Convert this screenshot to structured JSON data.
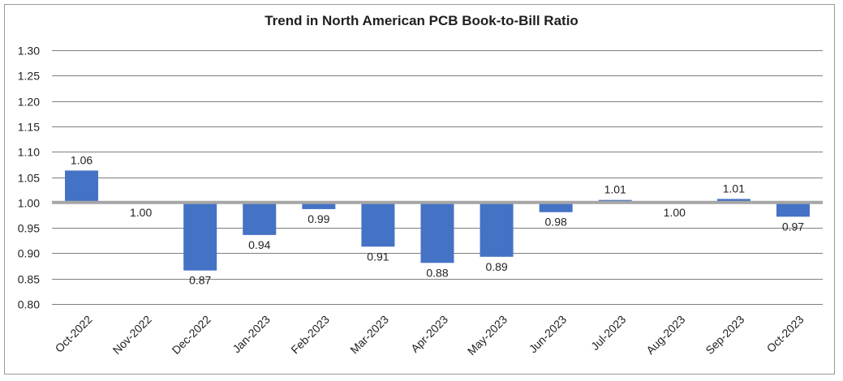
{
  "chart_data": {
    "type": "bar",
    "title": "Trend in North American PCB Book-to-Bill Ratio",
    "xlabel": "",
    "ylabel": "",
    "baseline": 1.0,
    "ylim": [
      0.8,
      1.3
    ],
    "yticks": [
      "0.80",
      "0.85",
      "0.90",
      "0.95",
      "1.00",
      "1.05",
      "1.10",
      "1.15",
      "1.20",
      "1.25",
      "1.30"
    ],
    "categories": [
      "Oct-2022",
      "Nov-2022",
      "Dec-2022",
      "Jan-2023",
      "Feb-2023",
      "Mar-2023",
      "Apr-2023",
      "May-2023",
      "Jun-2023",
      "Jul-2023",
      "Aug-2023",
      "Sep-2023",
      "Oct-2023"
    ],
    "values": [
      1.063,
      1.0,
      0.866,
      0.936,
      0.987,
      0.913,
      0.881,
      0.893,
      0.981,
      1.005,
      1.0,
      1.007,
      0.972
    ],
    "labels": [
      "1.06",
      "1.00",
      "0.87",
      "0.94",
      "0.99",
      "0.91",
      "0.88",
      "0.89",
      "0.98",
      "1.01",
      "1.00",
      "1.01",
      "0.97"
    ],
    "grid": true,
    "legend": "none",
    "colors": {
      "bar": "#4472c4",
      "baseline": "#a6a6a6",
      "grid": "#7f7f7f"
    }
  }
}
